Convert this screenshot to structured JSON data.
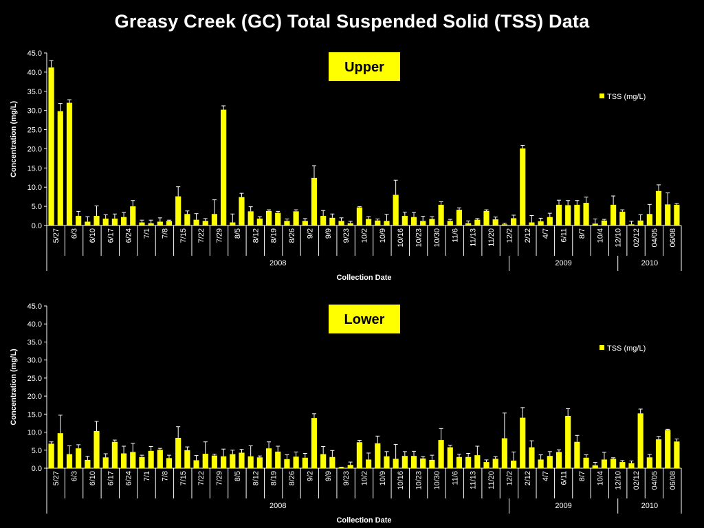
{
  "slide_title": "Greasy Creek (GC) Total Suspended Solid (TSS) Data",
  "colors": {
    "background": "#000000",
    "bar": "#ffff00",
    "box_fill": "#ffff00",
    "axis": "#ffffff",
    "text": "#ffffff"
  },
  "chart_data": [
    {
      "type": "bar",
      "panel_label": "Upper",
      "ylabel": "Concentration (mg/L)",
      "xlabel": "Collection Date",
      "ylim": [
        0,
        45
      ],
      "yticks": [
        "0.0",
        "5.0",
        "10.0",
        "15.0",
        "20.0",
        "25.0",
        "30.0",
        "35.0",
        "40.0",
        "45.0"
      ],
      "series": [
        {
          "name": "TSS (mg/L)"
        }
      ],
      "legend_position": "top-right",
      "x_tick_labels": [
        "5/27",
        "6/3",
        "6/10",
        "6/17",
        "6/24",
        "7/1",
        "7/8",
        "7/15",
        "7/22",
        "7/29",
        "8/5",
        "8/12",
        "8/19",
        "8/26",
        "9/2",
        "9/9",
        "9/23",
        "10/2",
        "10/9",
        "10/16",
        "10/23",
        "10/30",
        "11/6",
        "11/13",
        "11/20",
        "12/2",
        "2/12",
        "4/7",
        "6/11",
        "8/7",
        "10/4",
        "12/10",
        "02/12",
        "04/05",
        "06/08"
      ],
      "year_groups": [
        {
          "label": "2008",
          "count": 51
        },
        {
          "label": "2009",
          "count": 12
        },
        {
          "label": "2010",
          "count": 7
        }
      ],
      "values": [
        41.2,
        29.8,
        32.0,
        2.5,
        1.0,
        2.5,
        1.8,
        1.8,
        2.2,
        5.0,
        0.8,
        0.6,
        1.0,
        1.2,
        7.6,
        3.0,
        1.5,
        1.2,
        3.0,
        30.2,
        0.8,
        7.4,
        3.7,
        1.8,
        3.8,
        3.3,
        1.2,
        3.7,
        1.2,
        12.4,
        2.5,
        2.0,
        1.2,
        0.6,
        4.7,
        1.7,
        1.3,
        1.2,
        8.0,
        2.5,
        2.2,
        1.2,
        1.7,
        5.4,
        1.2,
        4.1,
        0.6,
        1.5,
        3.8,
        1.6,
        0.3,
        1.9,
        20.1,
        0.8,
        1.1,
        2.2,
        5.4,
        5.3,
        5.4,
        5.9,
        0.5,
        1.3,
        5.4,
        3.6,
        0.3,
        1.3,
        3.0,
        9.0,
        5.5,
        5.4
      ],
      "errors": [
        1.8,
        2.0,
        0.8,
        1.2,
        1.3,
        2.6,
        1.0,
        1.2,
        1.2,
        1.5,
        0.6,
        0.8,
        1.0,
        0.2,
        2.5,
        0.8,
        1.6,
        0.6,
        3.7,
        1.0,
        2.2,
        1.0,
        1.2,
        0.5,
        0.3,
        0.4,
        0.5,
        0.4,
        0.6,
        3.2,
        1.4,
        1.0,
        0.8,
        0.5,
        0.2,
        0.6,
        0.4,
        1.7,
        3.8,
        1.0,
        1.2,
        1.2,
        0.6,
        0.8,
        0.4,
        0.5,
        0.6,
        0.3,
        0.3,
        0.6,
        0.3,
        0.8,
        0.8,
        1.8,
        0.8,
        1.0,
        1.2,
        1.2,
        1.1,
        1.5,
        1.2,
        0.3,
        2.3,
        0.5,
        0.8,
        1.5,
        2.5,
        1.6,
        3.0,
        0.3
      ]
    },
    {
      "type": "bar",
      "panel_label": "Lower",
      "ylabel": "Concentration (mg/L)",
      "xlabel": "Collection Date",
      "ylim": [
        0,
        45
      ],
      "yticks": [
        "0.0",
        "5.0",
        "10.0",
        "15.0",
        "20.0",
        "25.0",
        "30.0",
        "35.0",
        "40.0",
        "45.0"
      ],
      "series": [
        {
          "name": "TSS (mg/L)"
        }
      ],
      "legend_position": "top-right",
      "x_tick_labels": [
        "5/27",
        "6/3",
        "6/10",
        "6/17",
        "6/24",
        "7/1",
        "7/8",
        "7/15",
        "7/22",
        "7/29",
        "8/5",
        "8/12",
        "8/19",
        "8/26",
        "9/2",
        "9/9",
        "9/23",
        "10/2",
        "10/9",
        "10/16",
        "10/23",
        "10/30",
        "11/6",
        "11/13",
        "11/20",
        "12/2",
        "2/12",
        "4/7",
        "6/11",
        "8/7",
        "10/4",
        "12/10",
        "02/12",
        "04/05",
        "06/08"
      ],
      "year_groups": [
        {
          "label": "2008",
          "count": 51
        },
        {
          "label": "2009",
          "count": 12
        },
        {
          "label": "2010",
          "count": 7
        }
      ],
      "values": [
        6.8,
        9.7,
        3.9,
        5.5,
        2.3,
        10.3,
        3.0,
        7.3,
        4.1,
        4.5,
        3.1,
        4.8,
        5.1,
        2.8,
        8.4,
        5.0,
        2.2,
        4.0,
        3.5,
        3.3,
        3.9,
        4.3,
        3.3,
        3.0,
        5.5,
        4.6,
        2.5,
        3.2,
        2.9,
        13.9,
        3.9,
        3.1,
        0.2,
        0.9,
        7.2,
        2.4,
        6.9,
        3.3,
        2.6,
        3.4,
        3.4,
        2.7,
        2.3,
        7.8,
        5.8,
        3.1,
        3.1,
        3.6,
        1.7,
        2.6,
        8.3,
        2.1,
        14.0,
        5.8,
        2.4,
        3.4,
        4.5,
        14.5,
        7.3,
        2.9,
        0.8,
        2.4,
        2.6,
        1.7,
        1.4,
        15.2,
        3.0,
        8.0,
        10.6,
        7.4
      ],
      "errors": [
        0.5,
        5.0,
        2.3,
        1.0,
        1.0,
        2.7,
        1.0,
        0.5,
        2.0,
        2.4,
        0.5,
        1.2,
        0.4,
        0.8,
        3.1,
        0.9,
        1.3,
        3.3,
        0.4,
        2.0,
        1.1,
        0.9,
        2.9,
        0.4,
        1.8,
        1.5,
        1.2,
        1.3,
        1.2,
        1.2,
        2.1,
        1.8,
        0.1,
        0.8,
        0.5,
        1.8,
        2.0,
        1.3,
        4.0,
        1.2,
        1.3,
        0.5,
        1.3,
        3.2,
        0.6,
        0.8,
        1.0,
        2.5,
        0.6,
        0.6,
        7.0,
        2.4,
        2.8,
        1.8,
        1.3,
        1.2,
        0.6,
        2.0,
        1.8,
        0.8,
        0.8,
        2.0,
        0.3,
        0.4,
        0.6,
        1.2,
        0.8,
        0.8,
        0.2,
        0.7
      ]
    }
  ]
}
